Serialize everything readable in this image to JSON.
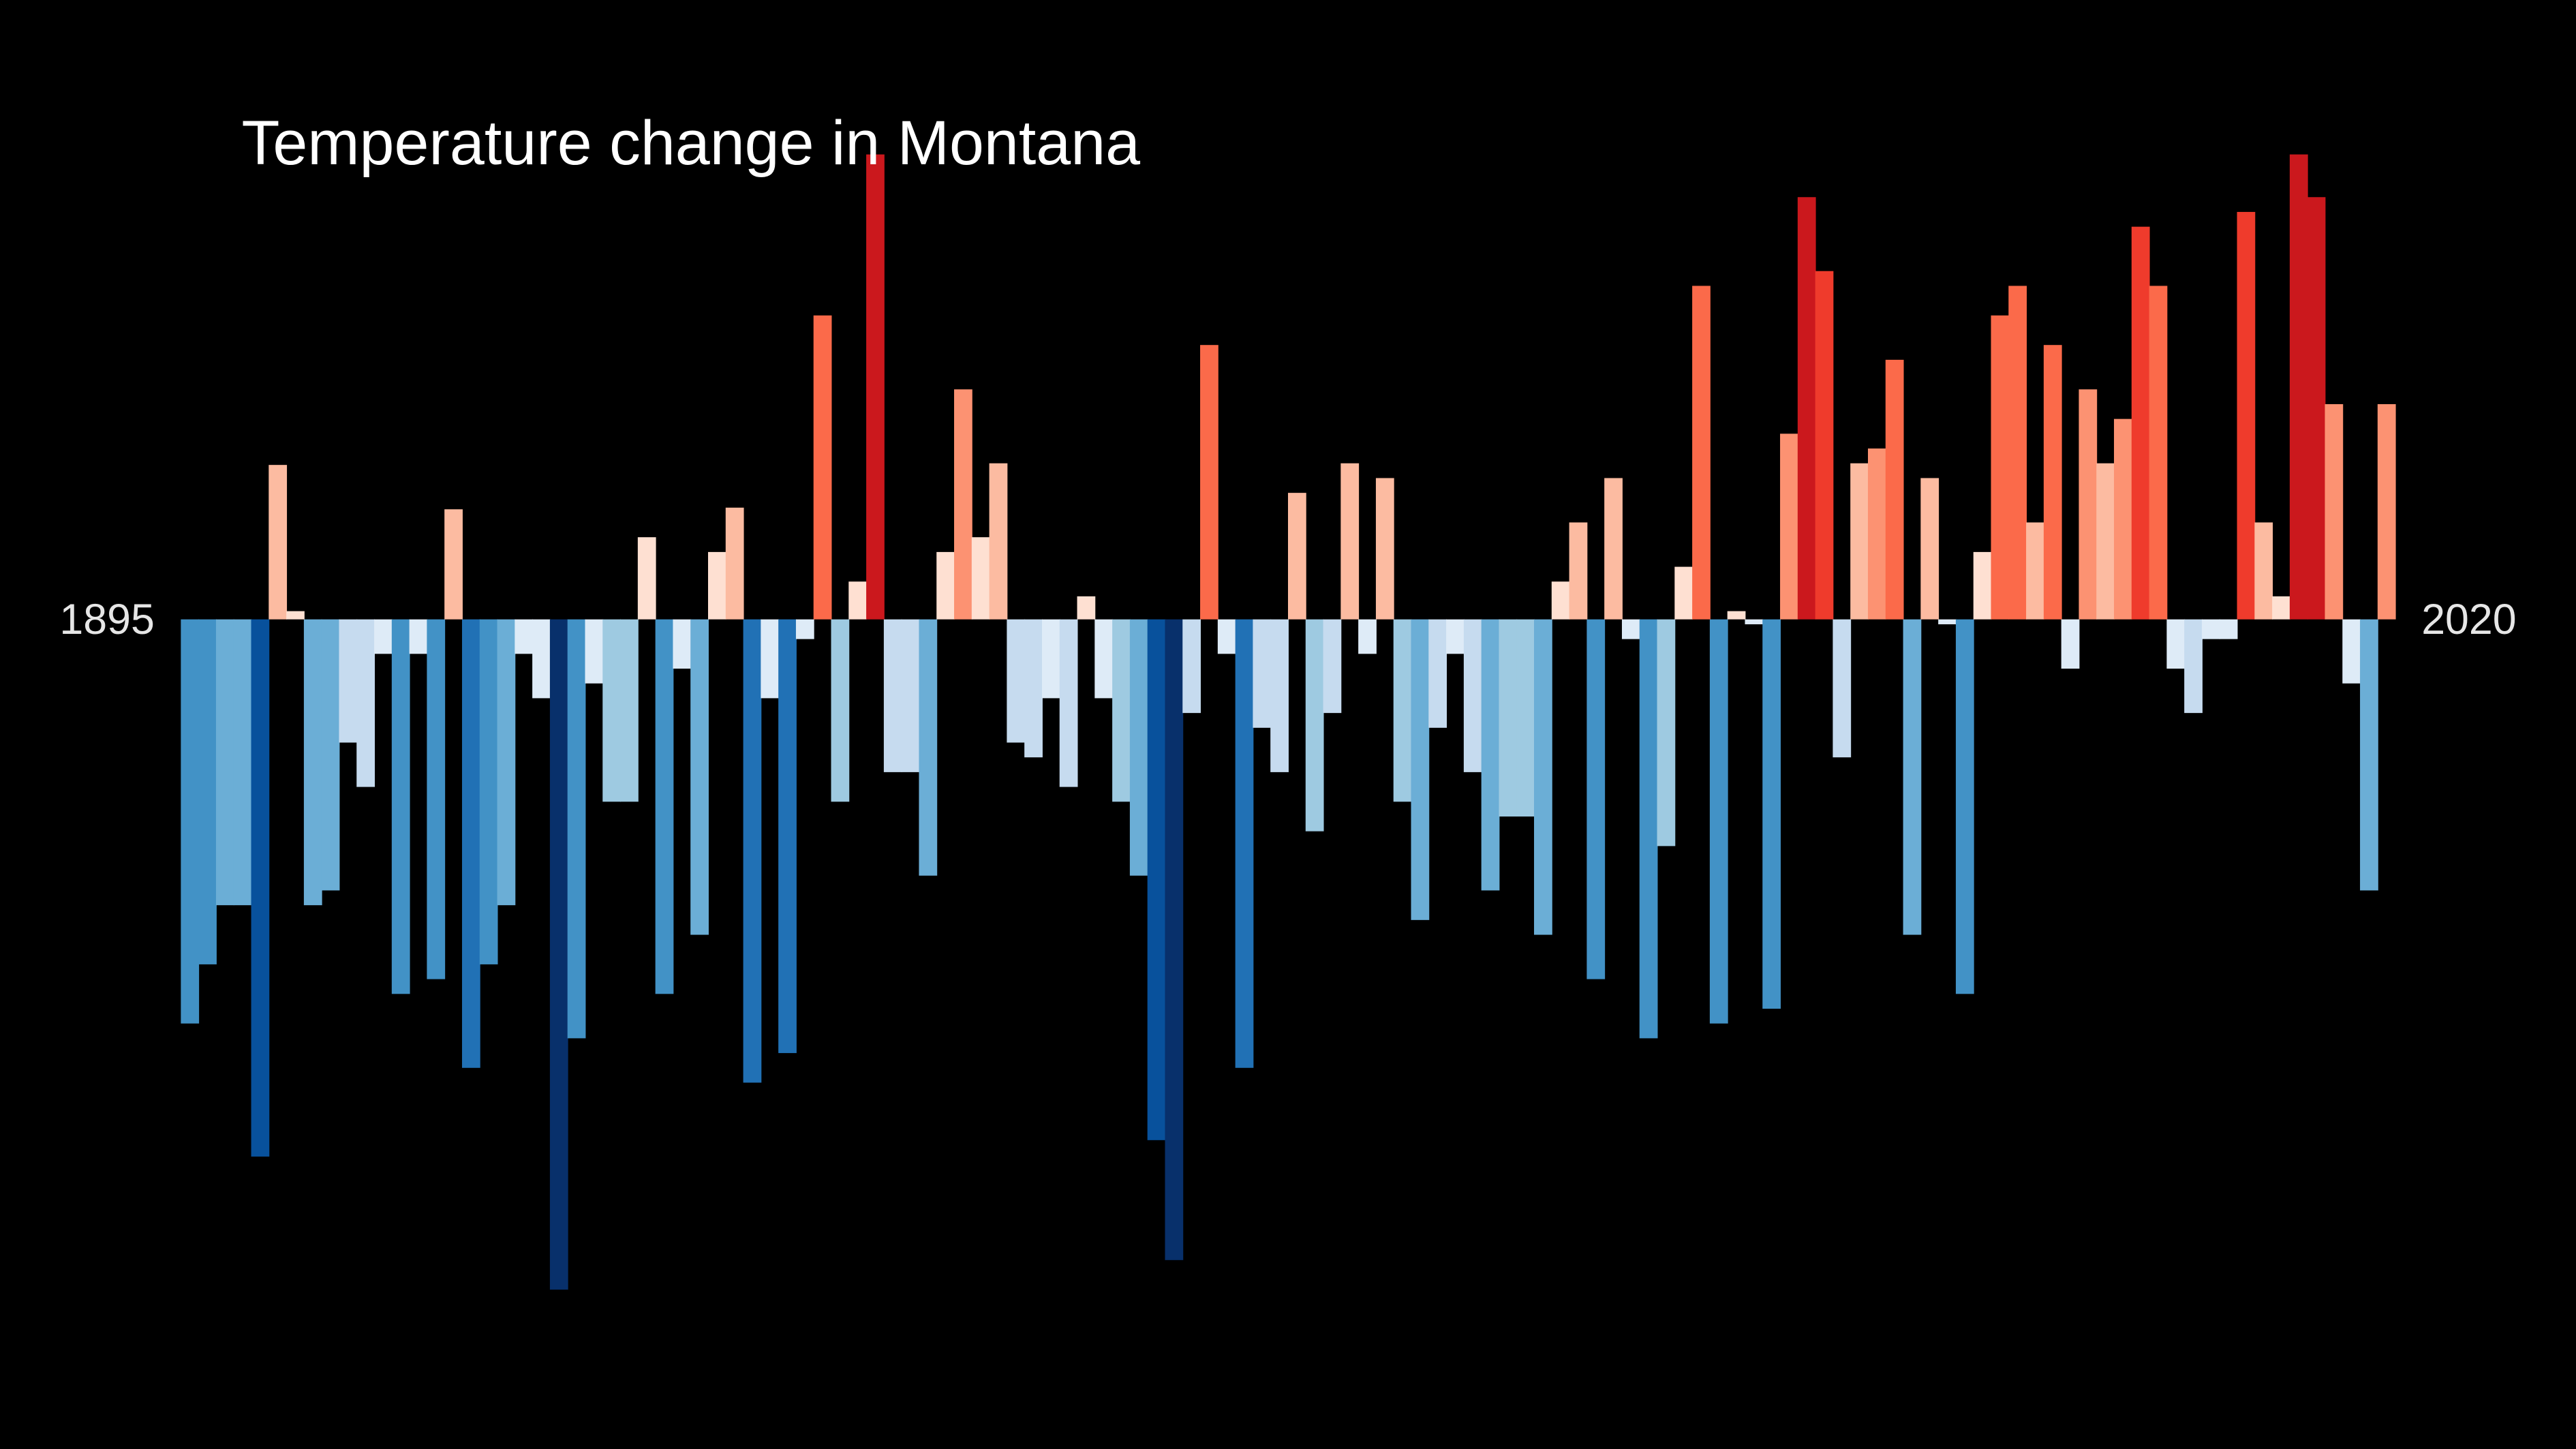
{
  "chart_data": {
    "type": "bar",
    "title": "Temperature change in Montana",
    "x": [
      1895,
      1896,
      1897,
      1898,
      1899,
      1900,
      1901,
      1902,
      1903,
      1904,
      1905,
      1906,
      1907,
      1908,
      1909,
      1910,
      1911,
      1912,
      1913,
      1914,
      1915,
      1916,
      1917,
      1918,
      1919,
      1920,
      1921,
      1922,
      1923,
      1924,
      1925,
      1926,
      1927,
      1928,
      1929,
      1930,
      1931,
      1932,
      1933,
      1934,
      1935,
      1936,
      1937,
      1938,
      1939,
      1940,
      1941,
      1942,
      1943,
      1944,
      1945,
      1946,
      1947,
      1948,
      1949,
      1950,
      1951,
      1952,
      1953,
      1954,
      1955,
      1956,
      1957,
      1958,
      1959,
      1960,
      1961,
      1962,
      1963,
      1964,
      1965,
      1966,
      1967,
      1968,
      1969,
      1970,
      1971,
      1972,
      1973,
      1974,
      1975,
      1976,
      1977,
      1978,
      1979,
      1980,
      1981,
      1982,
      1983,
      1984,
      1985,
      1986,
      1987,
      1988,
      1989,
      1990,
      1991,
      1992,
      1993,
      1994,
      1995,
      1996,
      1997,
      1998,
      1999,
      2000,
      2001,
      2002,
      2003,
      2004,
      2005,
      2006,
      2007,
      2008,
      2009,
      2010,
      2011,
      2012,
      2013,
      2014,
      2015,
      2016,
      2017,
      2018,
      2019,
      2020
    ],
    "values": [
      -2.46,
      -2.1,
      -1.74,
      -1.74,
      -3.27,
      0.94,
      0.05,
      -1.74,
      -1.65,
      -0.75,
      -1.02,
      -0.21,
      -2.28,
      -0.21,
      -2.19,
      0.67,
      -2.73,
      -2.1,
      -1.74,
      -0.21,
      -0.48,
      -4.08,
      -2.55,
      -0.39,
      -1.11,
      -1.11,
      0.5,
      -2.28,
      -0.3,
      -1.92,
      0.41,
      0.68,
      -2.82,
      -0.48,
      -2.64,
      -0.12,
      1.85,
      -1.11,
      0.23,
      2.83,
      -0.93,
      -0.93,
      -1.56,
      0.41,
      1.4,
      0.5,
      0.95,
      -0.75,
      -0.84,
      -0.48,
      -1.02,
      0.14,
      -0.48,
      -1.11,
      -1.56,
      -3.17,
      -3.9,
      -0.57,
      1.67,
      -0.21,
      -2.73,
      -0.66,
      -0.93,
      0.77,
      -1.29,
      -0.57,
      0.95,
      -0.21,
      0.86,
      -1.11,
      -1.83,
      -0.66,
      -0.21,
      -0.93,
      -1.65,
      -1.2,
      -1.2,
      -1.92,
      0.23,
      0.59,
      -2.19,
      0.86,
      -0.12,
      -2.55,
      -1.38,
      0.32,
      2.03,
      -2.46,
      0.05,
      -0.03,
      -2.37,
      1.13,
      2.57,
      2.12,
      -0.84,
      0.95,
      1.04,
      1.58,
      -1.92,
      0.86,
      -0.03,
      -2.28,
      0.41,
      1.85,
      2.03,
      0.59,
      1.67,
      -0.3,
      1.4,
      0.95,
      1.22,
      2.39,
      2.03,
      -0.3,
      -0.57,
      -0.12,
      -0.12,
      2.48,
      0.59,
      0.14,
      2.83,
      2.57,
      1.31,
      -0.39,
      -1.65,
      1.31
    ],
    "ylim": [
      -5.05,
      3.77
    ],
    "colormap": [
      "#08306b",
      "#08519c",
      "#2171b5",
      "#4292c6",
      "#6baed6",
      "#9ecae1",
      "#c6dbef",
      "#deebf7",
      "#fee0d2",
      "#fcbba1",
      "#fc9272",
      "#fb6a4a",
      "#ef3b2c",
      "#cb181d",
      "#a50f15",
      "#67000d"
    ],
    "background": "#000000"
  }
}
